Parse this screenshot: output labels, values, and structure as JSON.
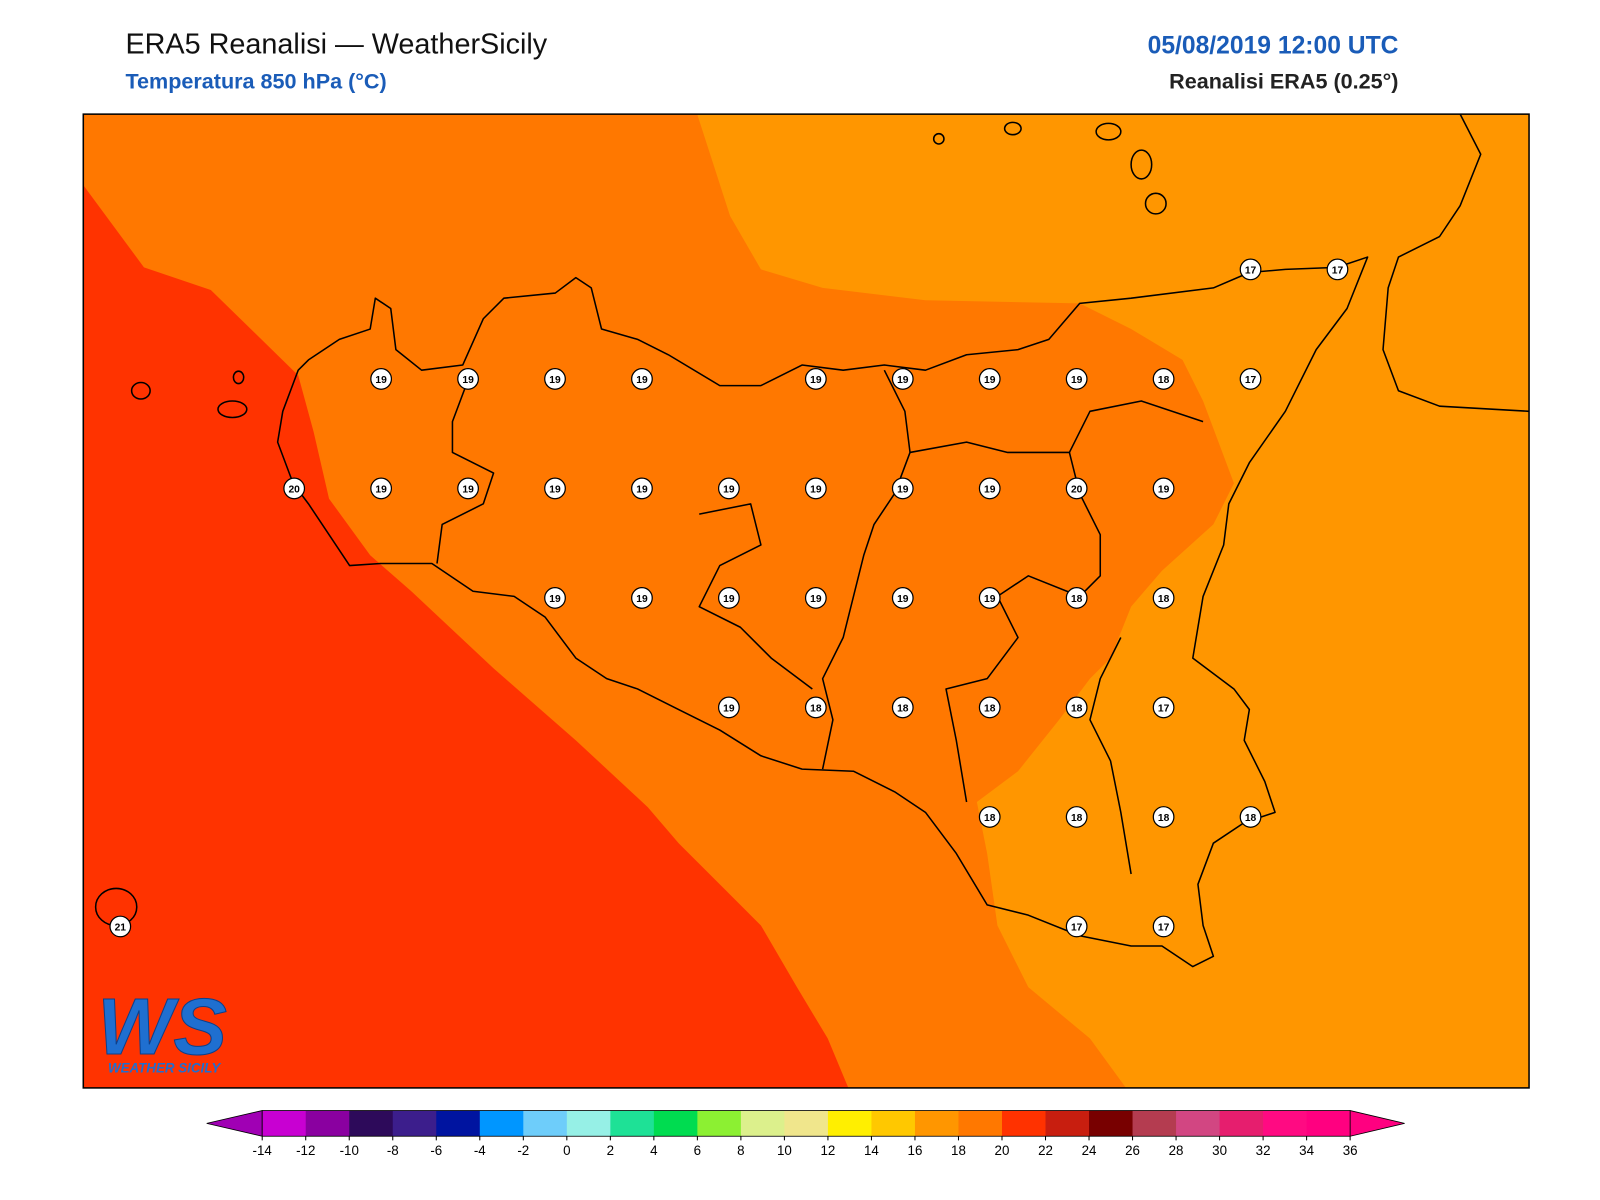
{
  "header": {
    "title": "ERA5 Reanalisi — WeatherSicily",
    "subtitle": "Temperatura 850 hPa (°C)",
    "datetime": "05/08/2019 12:00 UTC",
    "model": "Reanalisi ERA5 (0.25°)"
  },
  "map": {
    "temperature_grid": [
      [
        null,
        null,
        null,
        null,
        null,
        null,
        null,
        null,
        null,
        null,
        null,
        null,
        null,
        17,
        17
      ],
      [
        null,
        null,
        null,
        19,
        19,
        19,
        19,
        null,
        19,
        19,
        19,
        19,
        18,
        17,
        null
      ],
      [
        null,
        null,
        20,
        19,
        19,
        19,
        19,
        19,
        19,
        19,
        19,
        20,
        19,
        null,
        null
      ],
      [
        null,
        null,
        null,
        null,
        null,
        19,
        19,
        19,
        19,
        19,
        19,
        18,
        18,
        null,
        null
      ],
      [
        null,
        null,
        null,
        null,
        null,
        null,
        null,
        19,
        18,
        18,
        18,
        18,
        17,
        null,
        null
      ],
      [
        null,
        null,
        null,
        null,
        null,
        null,
        null,
        null,
        null,
        null,
        18,
        18,
        18,
        18,
        null
      ],
      [
        21,
        null,
        null,
        null,
        null,
        null,
        null,
        null,
        null,
        null,
        null,
        17,
        17,
        null,
        null
      ]
    ]
  },
  "colorbar": {
    "ticks": [
      -14,
      -12,
      -10,
      -8,
      -6,
      -4,
      -2,
      0,
      2,
      4,
      6,
      8,
      10,
      12,
      14,
      16,
      18,
      20,
      22,
      24,
      26,
      28,
      30,
      32,
      34,
      36
    ],
    "colors": [
      "#c800d2",
      "#8a00a0",
      "#2d0a5a",
      "#3c1e8c",
      "#0014a0",
      "#0096ff",
      "#6ecdfa",
      "#96f0e6",
      "#1ee196",
      "#00dc50",
      "#8cf032",
      "#dcf08c",
      "#f0e68c",
      "#ffef00",
      "#ffc800",
      "#ff9600",
      "#ff7800",
      "#ff3200",
      "#c81e0f",
      "#780000",
      "#b43c50",
      "#d24682",
      "#e61e6e",
      "#ff0a82",
      "#ff0080"
    ],
    "extend_min_color": "#a000b4",
    "extend_max_color": "#ff0080"
  },
  "logo": {
    "mark": "WS",
    "text": "WEATHER SICILY"
  }
}
